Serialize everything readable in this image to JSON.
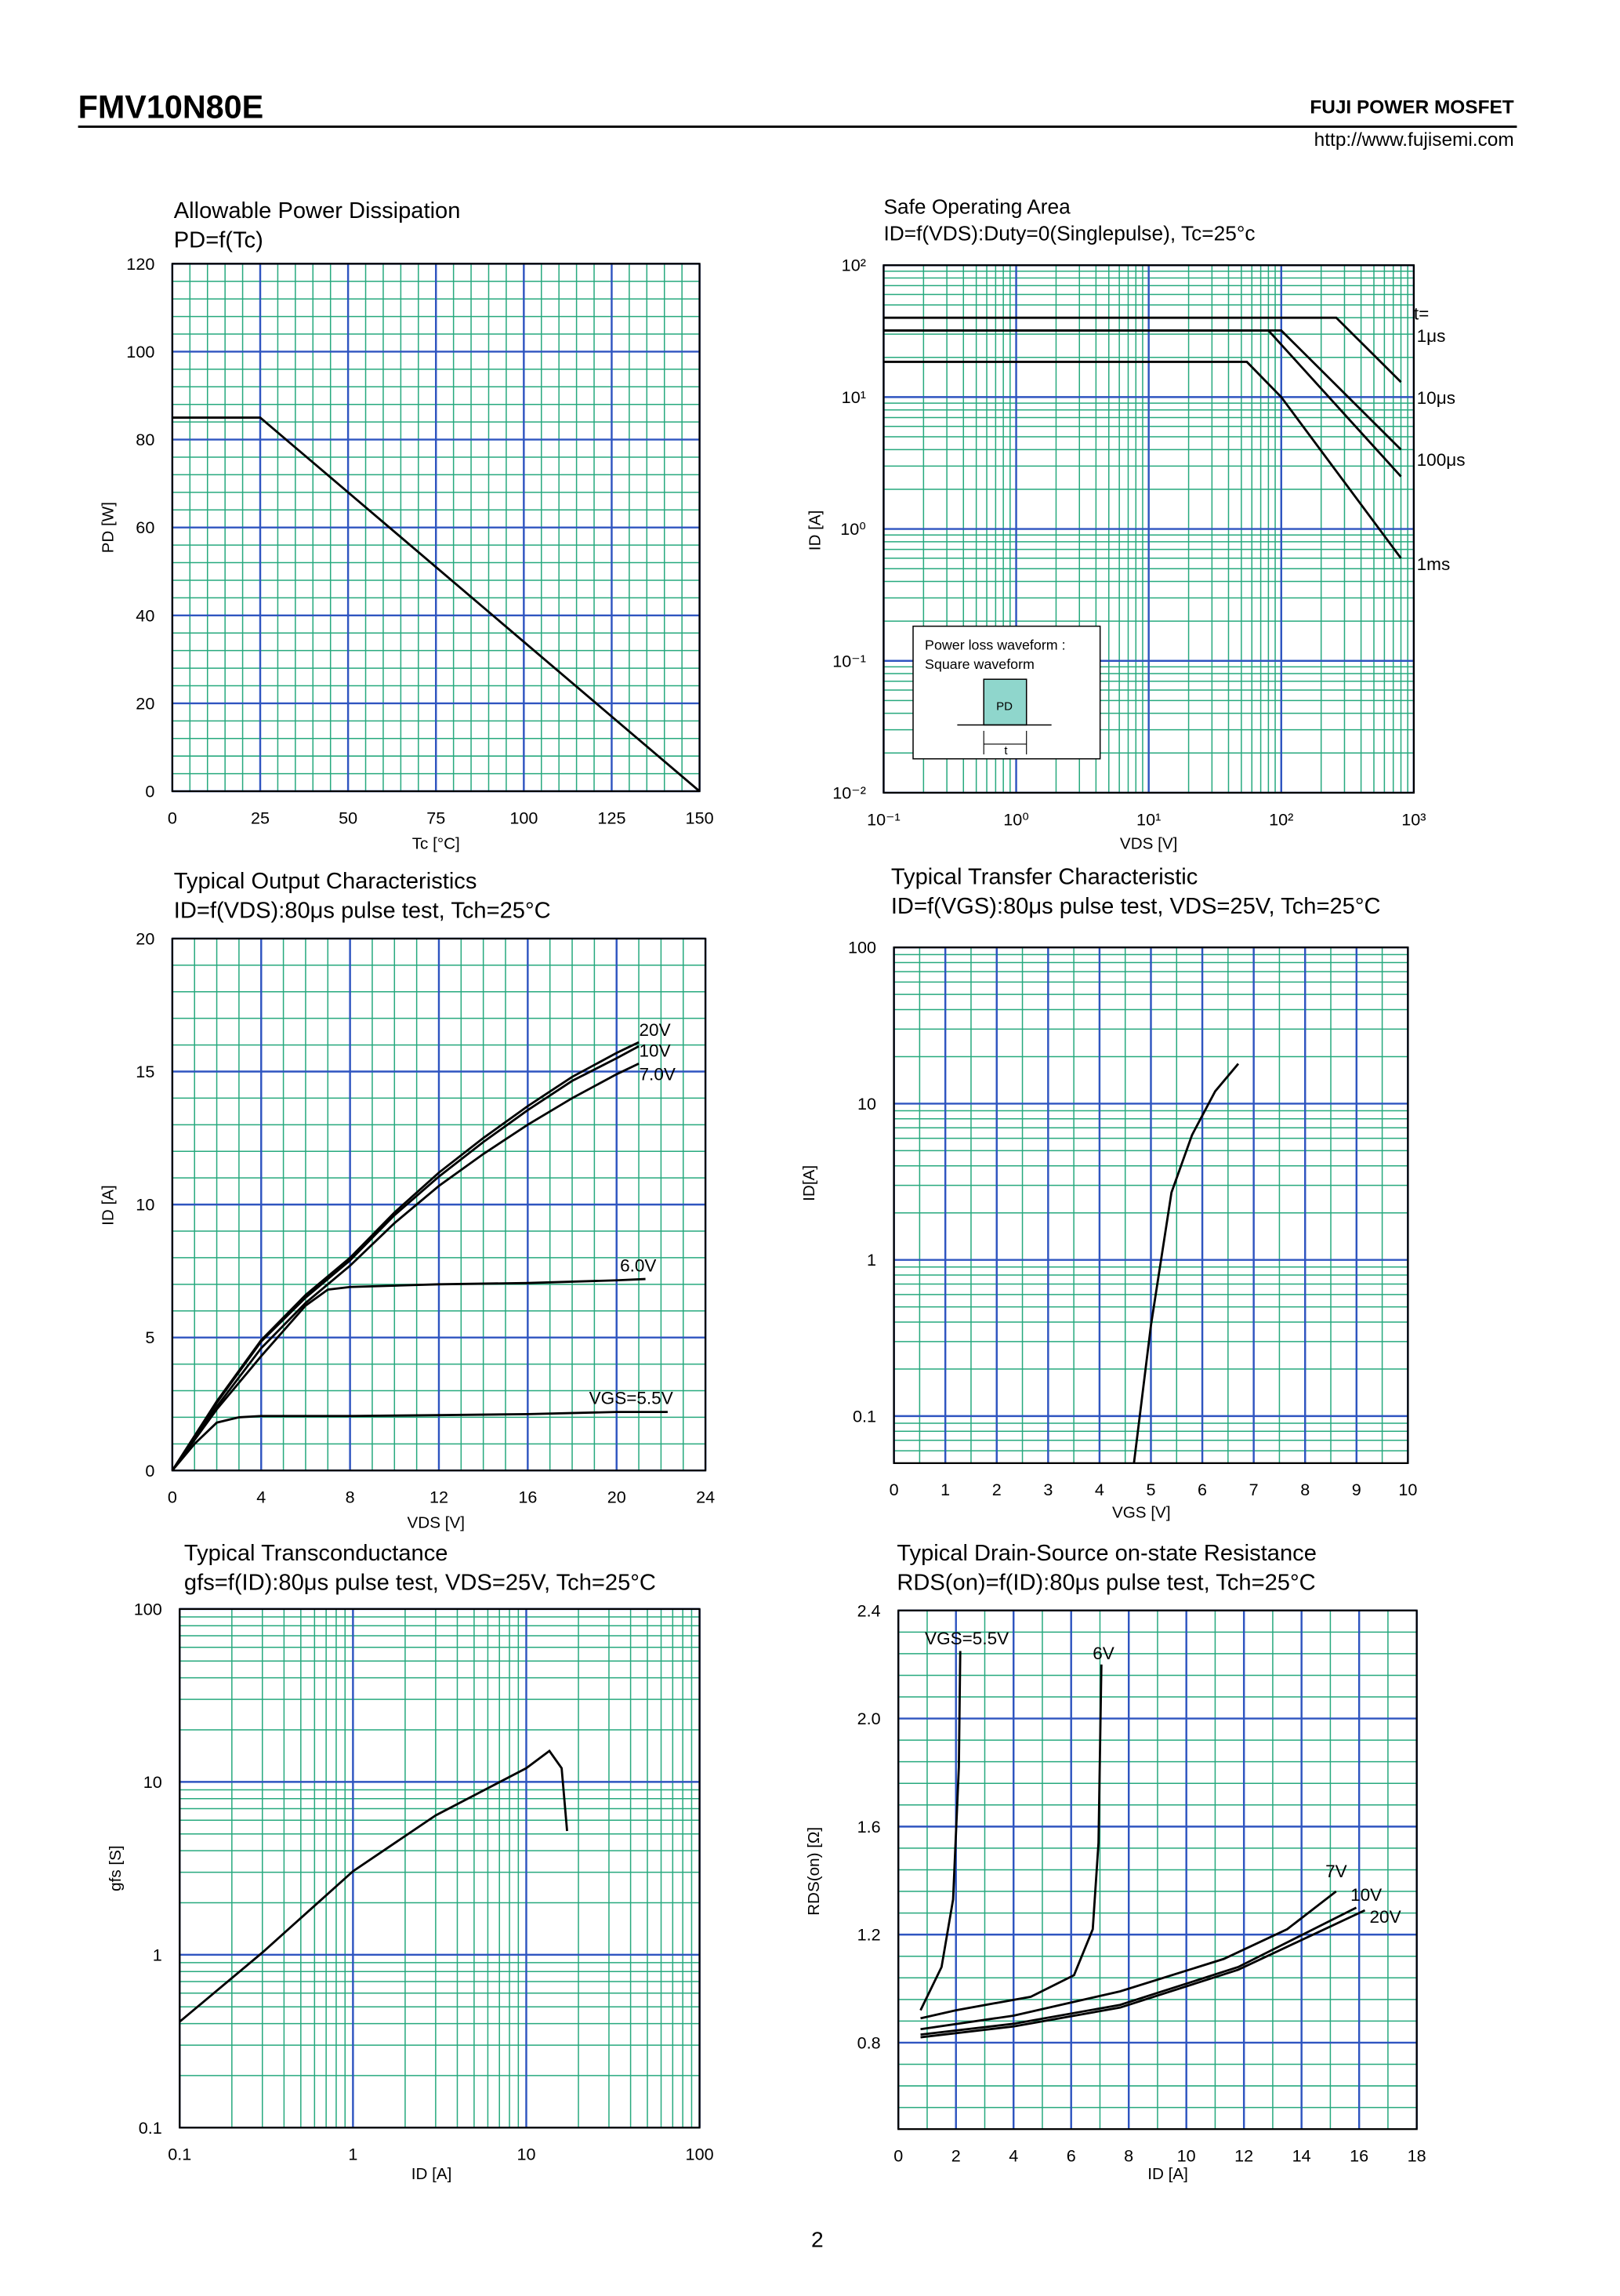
{
  "header": {
    "title": "FMV10N80E",
    "brand": "FUJI POWER MOSFET",
    "url": "http://www.fujisemi.com"
  },
  "page_number": "2",
  "chart_data": [
    {
      "type": "line",
      "title": "Allowable Power Dissipation",
      "subtitle": "PD=f(Tc)",
      "x_label": "Tc [°C]",
      "y_label": "PD [W]",
      "x": [
        0,
        25,
        150
      ],
      "values": [
        85,
        85,
        0
      ],
      "color": "#000000",
      "xlim": [
        0,
        150
      ],
      "xticks": [
        0,
        25,
        50,
        75,
        100,
        125,
        150
      ],
      "ylim": [
        0,
        120
      ],
      "yticks": [
        0,
        20,
        40,
        60,
        80,
        100,
        120
      ],
      "grid": true
    },
    {
      "type": "line",
      "title": "Safe Operating Area",
      "subtitle": "ID=f(VDS):Duty=0(Singlepulse), Tc=25°c",
      "x_label": "VDS [V]",
      "y_label": "ID [A]",
      "xscale": "log",
      "yscale": "log",
      "xlim": [
        0.1,
        1000
      ],
      "xticks": [
        {
          "value": 0.1,
          "label": "10⁻¹"
        },
        {
          "value": 1,
          "label": "10⁰"
        },
        {
          "value": 10,
          "label": "10¹"
        },
        {
          "value": 100,
          "label": "10²"
        },
        {
          "value": 1000,
          "label": "10³"
        }
      ],
      "ylim": [
        0.01,
        100
      ],
      "yticks": [
        {
          "value": 0.01,
          "label": "10⁻²"
        },
        {
          "value": 0.1,
          "label": "10⁻¹"
        },
        {
          "value": 1,
          "label": "10⁰"
        },
        {
          "value": 10,
          "label": "10¹"
        },
        {
          "value": 100,
          "label": "10²"
        }
      ],
      "grid": true,
      "series": [
        {
          "name": "1μs",
          "color": "#000000",
          "x": [
            0.1,
            260,
            800
          ],
          "values": [
            40,
            40,
            13
          ]
        },
        {
          "name": "10μs",
          "color": "#000000",
          "x": [
            0.1,
            100,
            800
          ],
          "values": [
            32,
            32,
            4
          ]
        },
        {
          "name": "100μs",
          "color": "#000000",
          "x": [
            0.1,
            80,
            800
          ],
          "values": [
            32,
            32,
            2.5
          ]
        },
        {
          "name": "1ms",
          "color": "#000000",
          "x": [
            0.1,
            55,
            100,
            800
          ],
          "values": [
            18.5,
            18.5,
            10,
            0.6
          ]
        }
      ],
      "annotations": [
        "t=",
        "Power loss waveform :",
        "Square waveform",
        "PD",
        "t"
      ]
    },
    {
      "type": "line",
      "title": "Typical Output Characteristics",
      "subtitle": "ID=f(VDS):80μs pulse test, Tch=25°C",
      "x_label": "VDS [V]",
      "y_label": "ID [A]",
      "xlim": [
        0,
        24
      ],
      "xticks": [
        0,
        4,
        8,
        12,
        16,
        20,
        24
      ],
      "ylim": [
        0,
        20
      ],
      "yticks": [
        0,
        5,
        10,
        15,
        20
      ],
      "grid": true,
      "series": [
        {
          "name": "20V",
          "color": "#000000",
          "x": [
            0,
            2,
            4,
            6,
            8,
            10,
            12,
            14,
            16,
            18,
            20,
            21
          ],
          "values": [
            0,
            2.6,
            4.9,
            6.6,
            8.0,
            9.7,
            11.2,
            12.5,
            13.7,
            14.8,
            15.7,
            16.1
          ]
        },
        {
          "name": "10V",
          "color": "#000000",
          "x": [
            0,
            2,
            4,
            6,
            8,
            10,
            12,
            14,
            16,
            18,
            20,
            21
          ],
          "values": [
            0,
            2.55,
            4.85,
            6.5,
            7.9,
            9.6,
            11.05,
            12.35,
            13.55,
            14.65,
            15.5,
            15.95
          ]
        },
        {
          "name": "7.0V",
          "color": "#000000",
          "x": [
            0,
            2,
            4,
            6,
            8,
            10,
            12,
            14,
            16,
            18,
            20,
            21
          ],
          "values": [
            0,
            2.4,
            4.6,
            6.3,
            7.7,
            9.3,
            10.7,
            11.9,
            13.0,
            14.0,
            14.9,
            15.3
          ]
        },
        {
          "name": "6.0V",
          "color": "#000000",
          "x": [
            0,
            2,
            4,
            6,
            7,
            8,
            12,
            16,
            20,
            21.3
          ],
          "values": [
            0,
            2.3,
            4.3,
            6.2,
            6.8,
            6.9,
            7.0,
            7.05,
            7.15,
            7.2
          ]
        },
        {
          "name": "VGS=5.5V",
          "color": "#000000",
          "x": [
            0,
            1,
            2,
            3,
            4,
            8,
            12,
            16,
            20,
            22.3
          ],
          "values": [
            0,
            1.0,
            1.8,
            2.0,
            2.05,
            2.05,
            2.08,
            2.12,
            2.2,
            2.2
          ]
        }
      ]
    },
    {
      "type": "line",
      "title": "Typical Transfer Characteristic",
      "subtitle": "ID=f(VGS):80μs pulse test, VDS=25V, Tch=25°C",
      "x_label": "VGS [V]",
      "y_label": "ID[A]",
      "yscale": "log",
      "x": [
        4.67,
        5.0,
        5.4,
        5.8,
        6.25,
        6.7
      ],
      "values": [
        0.05,
        0.38,
        2.7,
        6.3,
        12,
        18
      ],
      "color": "#000000",
      "xlim": [
        0,
        10
      ],
      "xticks": [
        0,
        1,
        2,
        3,
        4,
        5,
        6,
        7,
        8,
        9,
        10
      ],
      "ylim": [
        0.05,
        100
      ],
      "yticks": [
        0.1,
        1,
        10,
        100
      ],
      "grid": true
    },
    {
      "type": "line",
      "title": "Typical Transconductance",
      "subtitle": "gfs=f(ID):80μs pulse test, VDS=25V, Tch=25°C",
      "x_label": "ID [A]",
      "y_label": "gfs [S]",
      "xscale": "log",
      "yscale": "log",
      "x": [
        0.1,
        0.3,
        1,
        3,
        10,
        13.6,
        16,
        17.2
      ],
      "values": [
        0.41,
        1.03,
        3.04,
        6.4,
        12,
        15.1,
        12,
        5.2
      ],
      "color": "#000000",
      "xlim": [
        0.1,
        100
      ],
      "xticks": [
        0.1,
        1,
        10,
        100
      ],
      "ylim": [
        0.1,
        100
      ],
      "yticks": [
        0.1,
        1,
        10,
        100
      ],
      "grid": true
    },
    {
      "type": "line",
      "title": "Typical Drain-Source on-state Resistance",
      "subtitle": "RDS(on)=f(ID):80μs pulse test, Tch=25°C",
      "x_label": "ID [A]",
      "y_label": "RDS(on) [Ω]",
      "xlim": [
        0,
        18
      ],
      "xticks": [
        0,
        2,
        4,
        6,
        8,
        10,
        12,
        14,
        16,
        18
      ],
      "ylim": [
        0.48,
        2.4
      ],
      "yticks": [
        0.8,
        1.2,
        1.6,
        {
          "value": 2,
          "label": "2.0"
        },
        2.4
      ],
      "grid": true,
      "series": [
        {
          "name": "VGS=5.5V",
          "color": "#000000",
          "x": [
            0.77,
            1.5,
            1.9,
            2.1,
            2.15
          ],
          "values": [
            0.92,
            1.08,
            1.33,
            1.82,
            2.25
          ]
        },
        {
          "name": "6V",
          "color": "#000000",
          "x": [
            0.77,
            2,
            4.6,
            6.1,
            6.75,
            6.95,
            7.05
          ],
          "values": [
            0.89,
            0.92,
            0.97,
            1.05,
            1.22,
            1.54,
            2.2
          ]
        },
        {
          "name": "7V",
          "color": "#000000",
          "x": [
            0.77,
            4,
            7.7,
            11.3,
            13.5,
            15.2
          ],
          "values": [
            0.85,
            0.9,
            0.99,
            1.11,
            1.22,
            1.36
          ]
        },
        {
          "name": "10V",
          "color": "#000000",
          "x": [
            0.77,
            4,
            7.7,
            11.8,
            15.9
          ],
          "values": [
            0.83,
            0.87,
            0.94,
            1.08,
            1.3
          ]
        },
        {
          "name": "20V",
          "color": "#000000",
          "x": [
            0.77,
            4,
            7.7,
            11.8,
            16.2
          ],
          "values": [
            0.82,
            0.86,
            0.93,
            1.07,
            1.29
          ]
        }
      ]
    }
  ]
}
